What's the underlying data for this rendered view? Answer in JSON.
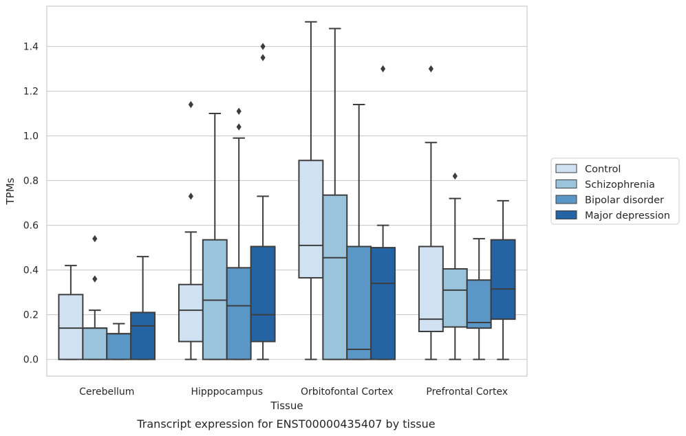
{
  "caption": "Transcript expression for ENST00000435407 by tissue",
  "chart_data": {
    "type": "boxplot",
    "xlabel": "Tissue",
    "ylabel": "TPMs",
    "ylim": [
      -0.075,
      1.58
    ],
    "yticks": [
      0.0,
      0.2,
      0.4,
      0.6,
      0.8,
      1.0,
      1.2,
      1.4
    ],
    "ytick_labels": [
      "0.0",
      "0.2",
      "0.4",
      "0.6",
      "0.8",
      "1.0",
      "1.2",
      "1.4"
    ],
    "grid": "horizontal",
    "legend_position": "right",
    "categories": [
      "Cerebellum",
      "Hipppocampus",
      "Orbitofontal Cortex",
      "Prefrontal Cortex"
    ],
    "series": [
      {
        "name": "Control",
        "color": "#d0e1f2",
        "boxes": [
          {
            "whislo": 0.0,
            "q1": 0.0,
            "med": 0.14,
            "q3": 0.29,
            "whishi": 0.42,
            "fliers": []
          },
          {
            "whislo": 0.0,
            "q1": 0.08,
            "med": 0.22,
            "q3": 0.335,
            "whishi": 0.57,
            "fliers": [
              0.73,
              1.14
            ]
          },
          {
            "whislo": 0.0,
            "q1": 0.365,
            "med": 0.51,
            "q3": 0.89,
            "whishi": 1.51,
            "fliers": []
          },
          {
            "whislo": 0.0,
            "q1": 0.125,
            "med": 0.18,
            "q3": 0.505,
            "whishi": 0.97,
            "fliers": [
              1.3
            ]
          }
        ]
      },
      {
        "name": "Schizophrenia",
        "color": "#9ac3dc",
        "boxes": [
          {
            "whislo": 0.0,
            "q1": 0.0,
            "med": 0.14,
            "q3": 0.14,
            "whishi": 0.22,
            "fliers": [
              0.36,
              0.54
            ]
          },
          {
            "whislo": 0.0,
            "q1": 0.0,
            "med": 0.265,
            "q3": 0.535,
            "whishi": 1.1,
            "fliers": []
          },
          {
            "whislo": 0.0,
            "q1": 0.0,
            "med": 0.455,
            "q3": 0.735,
            "whishi": 1.48,
            "fliers": []
          },
          {
            "whislo": 0.0,
            "q1": 0.145,
            "med": 0.31,
            "q3": 0.405,
            "whishi": 0.72,
            "fliers": [
              0.82
            ]
          }
        ]
      },
      {
        "name": "Bipolar disorder",
        "color": "#5a97c6",
        "boxes": [
          {
            "whislo": 0.0,
            "q1": 0.0,
            "med": 0.115,
            "q3": 0.115,
            "whishi": 0.16,
            "fliers": []
          },
          {
            "whislo": 0.0,
            "q1": 0.0,
            "med": 0.24,
            "q3": 0.41,
            "whishi": 0.99,
            "fliers": [
              1.04,
              1.11
            ]
          },
          {
            "whislo": 0.0,
            "q1": 0.0,
            "med": 0.045,
            "q3": 0.505,
            "whishi": 1.14,
            "fliers": []
          },
          {
            "whislo": 0.0,
            "q1": 0.14,
            "med": 0.165,
            "q3": 0.355,
            "whishi": 0.54,
            "fliers": []
          }
        ]
      },
      {
        "name": "Major depression",
        "color": "#2564a4",
        "boxes": [
          {
            "whislo": 0.0,
            "q1": 0.0,
            "med": 0.15,
            "q3": 0.21,
            "whishi": 0.46,
            "fliers": []
          },
          {
            "whislo": 0.0,
            "q1": 0.08,
            "med": 0.2,
            "q3": 0.505,
            "whishi": 0.73,
            "fliers": [
              1.35,
              1.4
            ]
          },
          {
            "whislo": 0.0,
            "q1": 0.0,
            "med": 0.34,
            "q3": 0.5,
            "whishi": 0.6,
            "fliers": [
              1.3
            ]
          },
          {
            "whislo": 0.0,
            "q1": 0.18,
            "med": 0.315,
            "q3": 0.535,
            "whishi": 0.71,
            "fliers": []
          }
        ]
      }
    ]
  }
}
